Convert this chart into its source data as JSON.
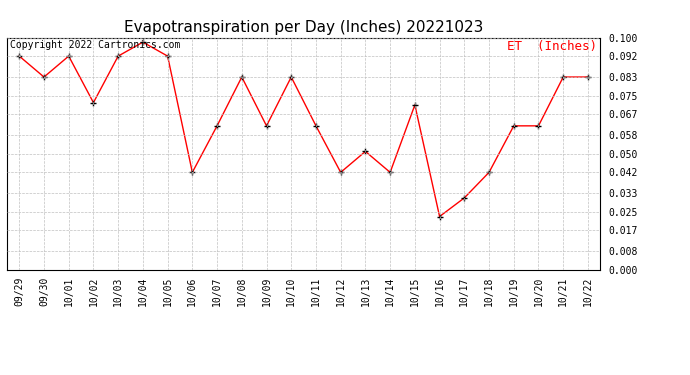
{
  "title": "Evapotranspiration per Day (Inches) 20221023",
  "copyright_text": "Copyright 2022 Cartronics.com",
  "legend_label": "ET  (Inches)",
  "dates": [
    "09/29",
    "09/30",
    "10/01",
    "10/02",
    "10/03",
    "10/04",
    "10/05",
    "10/06",
    "10/07",
    "10/08",
    "10/09",
    "10/10",
    "10/11",
    "10/12",
    "10/13",
    "10/14",
    "10/15",
    "10/16",
    "10/17",
    "10/18",
    "10/19",
    "10/20",
    "10/21",
    "10/22"
  ],
  "values": [
    0.092,
    0.083,
    0.092,
    0.072,
    0.092,
    0.098,
    0.092,
    0.042,
    0.062,
    0.083,
    0.062,
    0.083,
    0.062,
    0.042,
    0.051,
    0.042,
    0.071,
    0.023,
    0.031,
    0.042,
    0.062,
    0.062,
    0.083,
    0.083
  ],
  "line_color": "red",
  "marker_color": "black",
  "marker": "+",
  "ylim": [
    0.0,
    0.1
  ],
  "yticks": [
    0.0,
    0.008,
    0.017,
    0.025,
    0.033,
    0.042,
    0.05,
    0.058,
    0.067,
    0.075,
    0.083,
    0.092,
    0.1
  ],
  "background_color": "#ffffff",
  "grid_color": "#c0c0c0",
  "title_fontsize": 11,
  "copyright_fontsize": 7,
  "legend_fontsize": 9,
  "tick_fontsize": 7,
  "border_color": "#000000"
}
